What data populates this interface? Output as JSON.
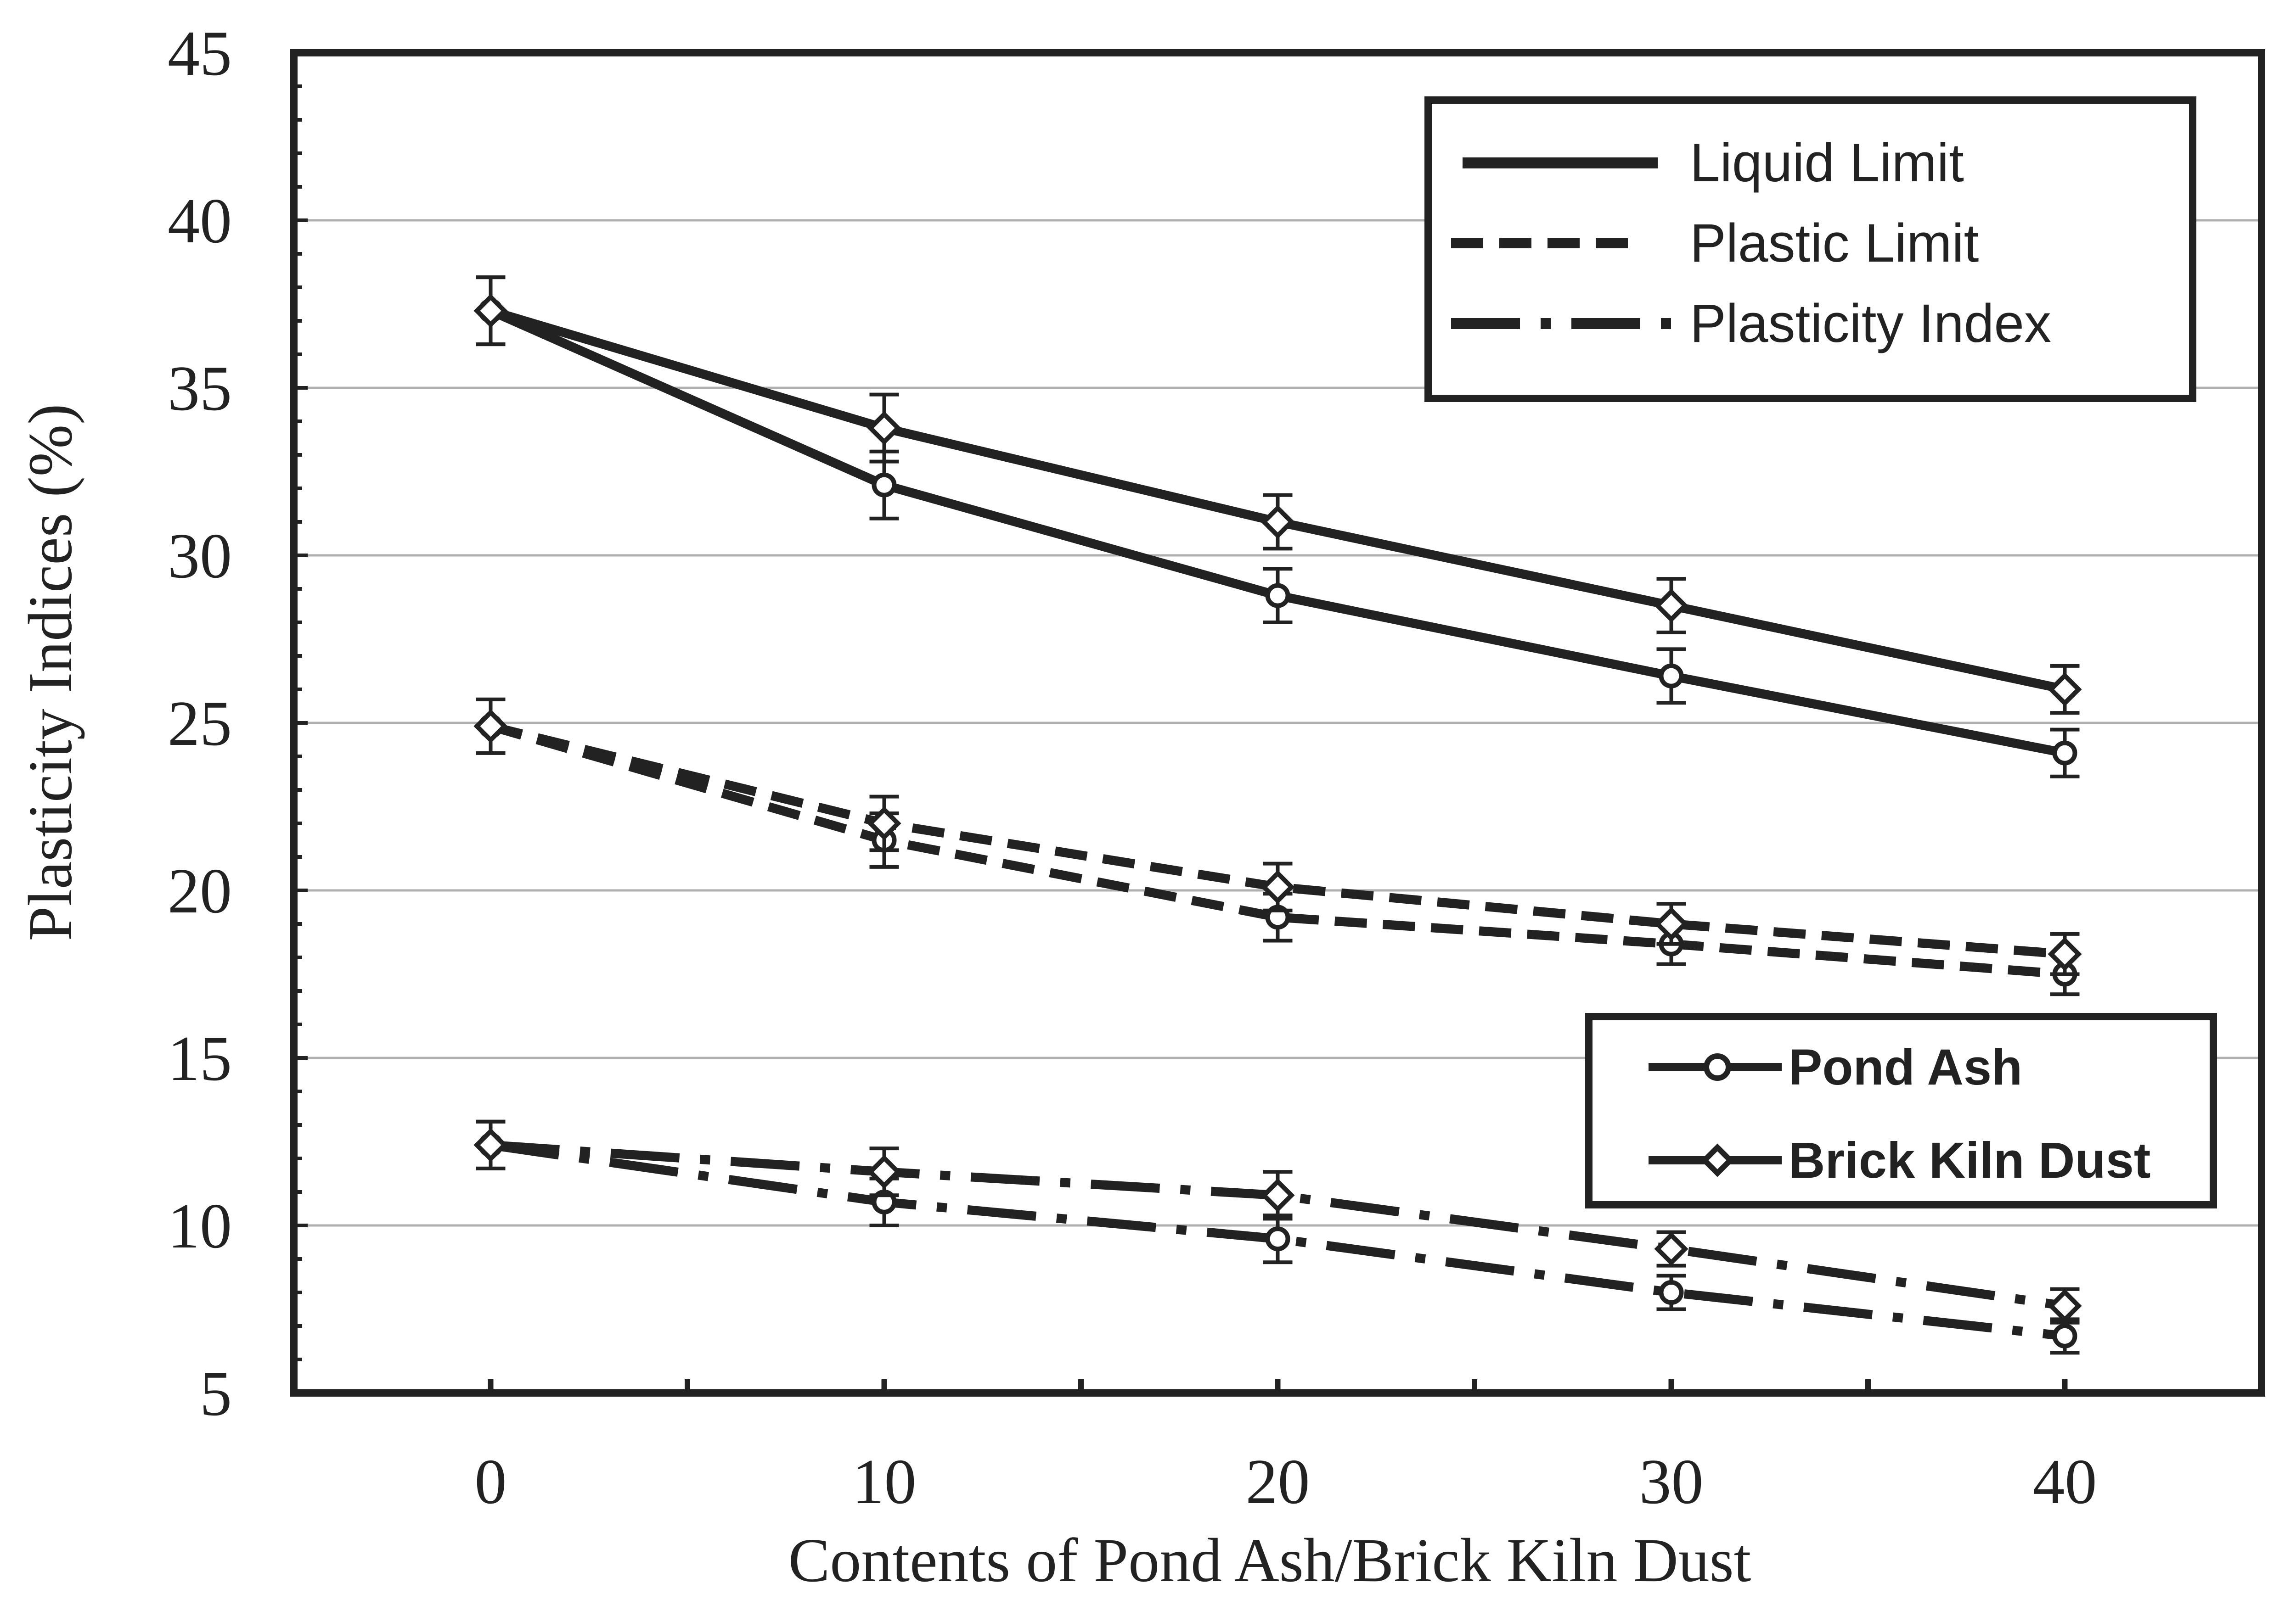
{
  "colors": {
    "ink": "#222222",
    "grid": "#b0b0b0",
    "background": "#ffffff"
  },
  "chart_data": {
    "type": "line",
    "xlabel": "Contents of  Pond Ash/Brick Kiln Dust",
    "ylabel": "Plasticity Indices (%)",
    "x": [
      0,
      10,
      20,
      30,
      40
    ],
    "xlim": [
      -5,
      45
    ],
    "ylim": [
      5,
      45
    ],
    "yticks": [
      5,
      10,
      15,
      20,
      25,
      30,
      35,
      40,
      45
    ],
    "xticks": [
      0,
      10,
      20,
      30,
      40
    ],
    "grid": "horizontal",
    "legend_properties": {
      "placement": "top-right",
      "entries": [
        {
          "label": "Liquid Limit",
          "style": "solid"
        },
        {
          "label": "Plastic Limit",
          "style": "dashed"
        },
        {
          "label": "Plasticity Index",
          "style": "dashdot"
        }
      ]
    },
    "legend_materials": {
      "placement": "right",
      "entries": [
        {
          "label": "Pond Ash",
          "marker": "circle"
        },
        {
          "label": "Brick Kiln Dust",
          "marker": "diamond"
        }
      ]
    },
    "series": [
      {
        "name": "Liquid Limit - Pond Ash",
        "style": "solid",
        "marker": "circle",
        "values": [
          37.3,
          32.1,
          28.8,
          26.4,
          24.1
        ],
        "errors": [
          1.0,
          1.0,
          0.8,
          0.8,
          0.7
        ]
      },
      {
        "name": "Liquid Limit - Brick Kiln Dust",
        "style": "solid",
        "marker": "diamond",
        "values": [
          37.3,
          33.8,
          31.0,
          28.5,
          26.0
        ],
        "errors": [
          1.0,
          1.0,
          0.8,
          0.8,
          0.7
        ]
      },
      {
        "name": "Plastic Limit - Pond Ash",
        "style": "dashed",
        "marker": "circle",
        "values": [
          24.9,
          21.5,
          19.2,
          18.4,
          17.5
        ],
        "errors": [
          0.8,
          0.8,
          0.7,
          0.6,
          0.6
        ]
      },
      {
        "name": "Plastic Limit - Brick Kiln Dust",
        "style": "dashed",
        "marker": "diamond",
        "values": [
          24.9,
          22.0,
          20.1,
          19.0,
          18.1
        ],
        "errors": [
          0.8,
          0.8,
          0.7,
          0.6,
          0.6
        ]
      },
      {
        "name": "Plasticity Index - Pond Ash",
        "style": "dashdot",
        "marker": "circle",
        "values": [
          12.4,
          10.7,
          9.6,
          8.0,
          6.7
        ],
        "errors": [
          0.7,
          0.7,
          0.7,
          0.5,
          0.5
        ]
      },
      {
        "name": "Plasticity Index - Brick Kiln Dust",
        "style": "dashdot",
        "marker": "diamond",
        "values": [
          12.4,
          11.6,
          10.9,
          9.3,
          7.6
        ],
        "errors": [
          0.7,
          0.7,
          0.7,
          0.5,
          0.5
        ]
      }
    ]
  }
}
